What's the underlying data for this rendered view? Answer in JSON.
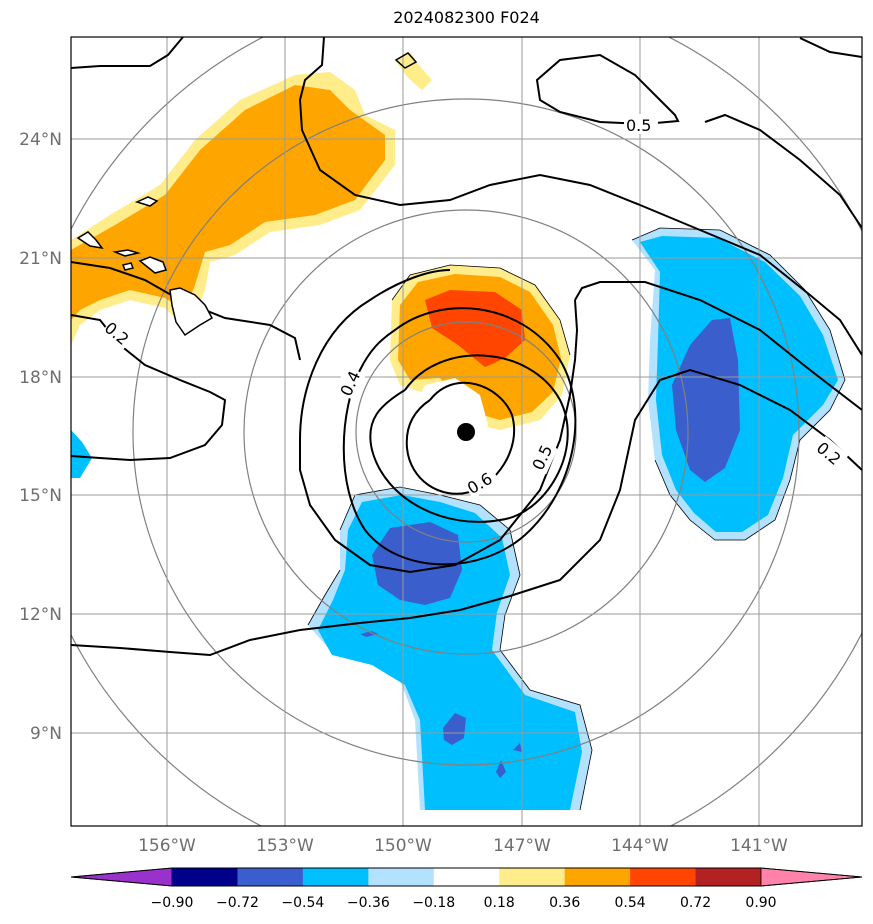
{
  "figure": {
    "title": "2024082300 F024"
  },
  "map": {
    "lon_ticks": [
      "156°W",
      "153°W",
      "150°W",
      "147°W",
      "144°W",
      "141°W"
    ],
    "lat_ticks": [
      "24°N",
      "21°N",
      "18°N",
      "15°N",
      "12°N",
      "9°N"
    ],
    "contour_labels": [
      "0.5",
      "0.2",
      "0.4",
      "0.6",
      "0.5",
      "0.2"
    ],
    "storm_center": {
      "lon": -148.5,
      "lat": 16.7
    }
  },
  "colorbar": {
    "tick_labels": [
      "−0.90",
      "−0.72",
      "−0.54",
      "−0.36",
      "−0.18",
      "0.18",
      "0.36",
      "0.54",
      "0.72",
      "0.90"
    ],
    "colors": [
      "#9932cc",
      "#00008b",
      "#3a5fcd",
      "#00bfff",
      "#b2e2ff",
      "#ffffff",
      "#ffec8b",
      "#ffa500",
      "#ff4500",
      "#b22222",
      "#ff82ab"
    ]
  },
  "colors": {
    "orange": "#ffa500",
    "light_yellow": "#ffec8b",
    "red_orange": "#ff4500",
    "deep_sky_blue": "#00bfff",
    "light_blue": "#b2e2ff",
    "royal_blue": "#3a5fcd",
    "grid": "#9a9a9a",
    "ring": "#808080"
  }
}
